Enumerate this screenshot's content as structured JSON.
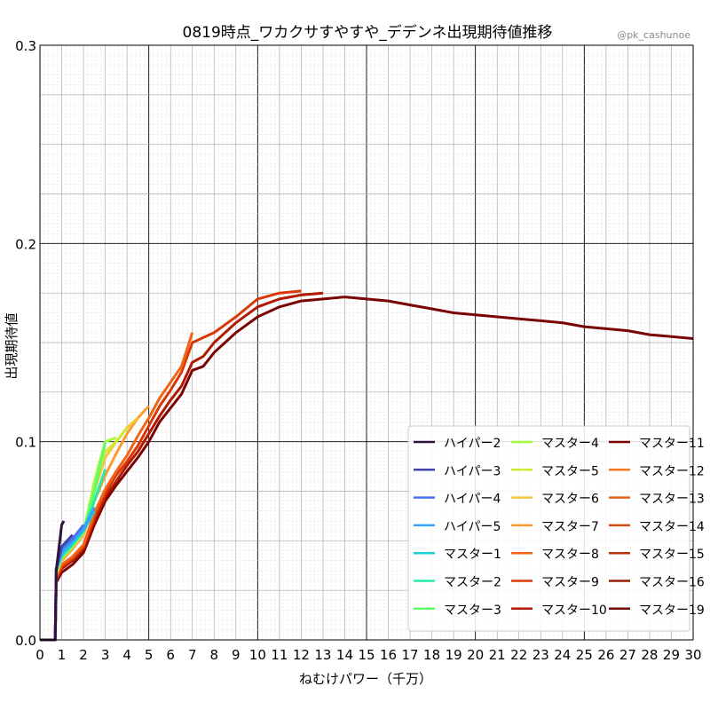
{
  "chart_data": {
    "type": "line",
    "title": "0819時点_ワカクサすやすや_デデンネ出現期待値推移",
    "credit": "@pk_cashunoe",
    "xlabel": "ねむけパワー（千万）",
    "ylabel": "出現期待値",
    "xlim": [
      0,
      30
    ],
    "ylim": [
      0,
      0.3
    ],
    "xticks": [
      "0",
      "1",
      "2",
      "3",
      "4",
      "5",
      "6",
      "7",
      "8",
      "9",
      "10",
      "11",
      "12",
      "13",
      "14",
      "15",
      "16",
      "17",
      "18",
      "19",
      "20",
      "21",
      "22",
      "23",
      "24",
      "25",
      "26",
      "27",
      "28",
      "29",
      "30"
    ],
    "yticks": [
      "0.0",
      "0.1",
      "0.2",
      "0.3"
    ],
    "grid": true,
    "legend_position": "lower-right",
    "series": [
      {
        "name": "ハイパー2",
        "color": "#30123b",
        "x": [
          0,
          0.7,
          0.75,
          1.0,
          1.1
        ],
        "y": [
          0,
          0,
          0.035,
          0.058,
          0.06
        ]
      },
      {
        "name": "ハイパー3",
        "color": "#4145ab",
        "x": [
          0,
          0.7,
          0.75,
          1.0,
          1.5
        ],
        "y": [
          0,
          0,
          0.036,
          0.047,
          0.053
        ]
      },
      {
        "name": "ハイパー4",
        "color": "#4675ed",
        "x": [
          0,
          0.7,
          0.75,
          1.0,
          1.5,
          2.0
        ],
        "y": [
          0,
          0,
          0.036,
          0.046,
          0.051,
          0.058
        ]
      },
      {
        "name": "ハイパー5",
        "color": "#39a2fc",
        "x": [
          0,
          0.7,
          0.75,
          1.0,
          1.5,
          2.0,
          2.5
        ],
        "y": [
          0,
          0,
          0.036,
          0.044,
          0.05,
          0.056,
          0.067
        ]
      },
      {
        "name": "マスター1",
        "color": "#1bcfd4",
        "x": [
          0,
          0.7,
          0.75,
          1.0,
          1.5,
          2.0,
          2.5
        ],
        "y": [
          0,
          0,
          0.035,
          0.043,
          0.049,
          0.055,
          0.065
        ]
      },
      {
        "name": "マスター2",
        "color": "#24eca6",
        "x": [
          0,
          0.7,
          0.75,
          1.0,
          1.5,
          2.0,
          2.5,
          3.0
        ],
        "y": [
          0,
          0,
          0.035,
          0.042,
          0.048,
          0.055,
          0.07,
          0.086
        ]
      },
      {
        "name": "マスター3",
        "color": "#61fc6c",
        "x": [
          0,
          0.7,
          0.75,
          1.0,
          1.5,
          2.0,
          2.5,
          3.0
        ],
        "y": [
          0,
          0,
          0.035,
          0.042,
          0.048,
          0.055,
          0.075,
          0.1
        ]
      },
      {
        "name": "マスター4",
        "color": "#a4fc3b",
        "x": [
          0,
          0.7,
          0.75,
          1.0,
          1.5,
          2.0,
          2.5,
          3.0,
          3.5
        ],
        "y": [
          0,
          0,
          0.034,
          0.041,
          0.047,
          0.054,
          0.08,
          0.1,
          0.102
        ]
      },
      {
        "name": "マスター5",
        "color": "#d1e834",
        "x": [
          0,
          0.7,
          0.75,
          1.0,
          1.5,
          2.0,
          2.5,
          3.0,
          3.5,
          4.0
        ],
        "y": [
          0,
          0,
          0.034,
          0.041,
          0.047,
          0.054,
          0.078,
          0.095,
          0.1,
          0.107
        ]
      },
      {
        "name": "マスター6",
        "color": "#f3c63a",
        "x": [
          0,
          0.7,
          0.75,
          1.0,
          1.5,
          2.0,
          2.5,
          3.0,
          3.5,
          4.0,
          4.5
        ],
        "y": [
          0,
          0,
          0.034,
          0.041,
          0.047,
          0.054,
          0.075,
          0.092,
          0.1,
          0.107,
          0.112
        ]
      },
      {
        "name": "マスター7",
        "color": "#fe9b2d",
        "x": [
          0,
          0.7,
          0.75,
          1.0,
          1.5,
          2.0,
          2.5,
          3.0,
          3.5,
          4.0,
          4.5,
          5.0
        ],
        "y": [
          0,
          0,
          0.033,
          0.04,
          0.046,
          0.053,
          0.07,
          0.083,
          0.094,
          0.104,
          0.112,
          0.118
        ]
      },
      {
        "name": "マスター8",
        "color": "#f36315",
        "x": [
          0,
          0.7,
          0.75,
          1.0,
          1.5,
          2.0,
          2.5,
          3.0,
          3.5,
          4.0,
          4.5,
          5.0,
          5.5,
          6.0,
          6.5,
          7.0
        ],
        "y": [
          0,
          0,
          0.032,
          0.038,
          0.042,
          0.048,
          0.064,
          0.076,
          0.085,
          0.093,
          0.103,
          0.112,
          0.122,
          0.13,
          0.138,
          0.155
        ]
      },
      {
        "name": "マスター9",
        "color": "#d93806",
        "x": [
          0,
          0.7,
          0.75,
          1.0,
          1.5,
          2.0,
          2.5,
          3.0,
          3.5,
          4.0,
          4.5,
          5.0,
          5.5,
          6.0,
          6.5,
          7.0,
          8.0,
          9.0,
          10.0,
          11.0,
          12.0
        ],
        "y": [
          0,
          0,
          0.031,
          0.037,
          0.041,
          0.047,
          0.062,
          0.074,
          0.083,
          0.09,
          0.098,
          0.108,
          0.118,
          0.126,
          0.135,
          0.15,
          0.155,
          0.163,
          0.172,
          0.175,
          0.176
        ]
      },
      {
        "name": "マスター10",
        "color": "#b11901",
        "x": [
          0,
          0.7,
          0.75,
          1.0,
          1.5,
          2.0,
          2.5,
          3.0,
          3.5,
          4.0,
          4.5,
          5.0,
          5.5,
          6.0,
          6.5,
          7.0,
          7.5,
          8.0,
          9.0,
          10.0,
          11.0,
          12.0,
          13.0
        ],
        "y": [
          0,
          0,
          0.03,
          0.036,
          0.04,
          0.046,
          0.06,
          0.072,
          0.08,
          0.088,
          0.095,
          0.104,
          0.113,
          0.121,
          0.128,
          0.14,
          0.143,
          0.15,
          0.16,
          0.168,
          0.172,
          0.174,
          0.175
        ]
      },
      {
        "name": "マスター11",
        "color": "#7a0403",
        "x": [
          0,
          0.7,
          0.75,
          1.0,
          1.5,
          2.0,
          2.5,
          3.0,
          3.5,
          4.0,
          4.5,
          5.0,
          5.5,
          6.0,
          6.5,
          7.0,
          7.5,
          8.0,
          9.0,
          10.0,
          11.0,
          12.0,
          13.0,
          14.0,
          15.0,
          16.0,
          17.0,
          18.0,
          19.0,
          20.0,
          21.0,
          22.0,
          23.0,
          24.0,
          25.0,
          26.0,
          27.0,
          28.0,
          29.0,
          30.0
        ],
        "y": [
          0,
          0,
          0.029,
          0.034,
          0.038,
          0.044,
          0.058,
          0.07,
          0.078,
          0.085,
          0.092,
          0.1,
          0.11,
          0.117,
          0.124,
          0.136,
          0.138,
          0.145,
          0.155,
          0.163,
          0.168,
          0.171,
          0.172,
          0.173,
          0.172,
          0.171,
          0.169,
          0.167,
          0.165,
          0.164,
          0.163,
          0.162,
          0.161,
          0.16,
          0.158,
          0.157,
          0.156,
          0.154,
          0.153,
          0.152
        ]
      },
      {
        "name": "マスター12",
        "color": "#f37b1d",
        "x": [],
        "y": []
      },
      {
        "name": "マスター13",
        "color": "#e2621a",
        "x": [],
        "y": []
      },
      {
        "name": "マスター14",
        "color": "#d14a10",
        "x": [],
        "y": []
      },
      {
        "name": "マスター15",
        "color": "#b8330a",
        "x": [],
        "y": []
      },
      {
        "name": "マスター16",
        "color": "#962006",
        "x": [],
        "y": []
      },
      {
        "name": "マスター19",
        "color": "#6b1004",
        "x": [],
        "y": []
      }
    ]
  }
}
